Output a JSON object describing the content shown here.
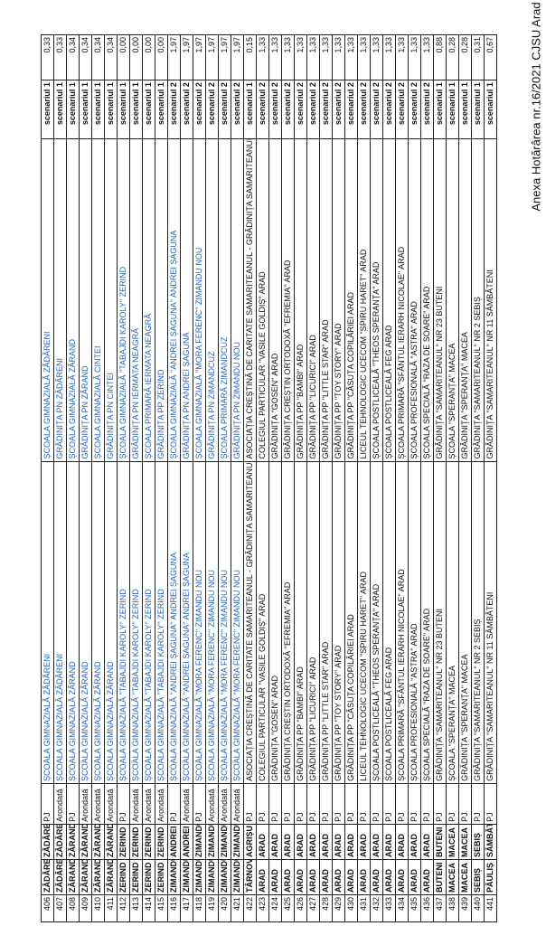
{
  "header": "Anexa Hotărârea nr.16/2021 CJSU Arad",
  "rows": [
    {
      "id": "406",
      "loc1": "ZĂDĂRENI",
      "loc2": "ZĂDĂRENI",
      "type": "PJ",
      "unit1": "ȘCOALA GIMNAZIALĂ ZĂDĂRENI",
      "unit2": "ȘCOALA GIMNAZIALĂ ZĂDĂRENI",
      "scenario": "scenariul 1",
      "value": "0,33",
      "blue": true
    },
    {
      "id": "407",
      "loc1": "ZĂDĂRENI",
      "loc2": "ZĂDĂRENI",
      "type": "Arondată",
      "unit1": "ȘCOALA GIMNAZIALĂ ZĂDĂRENI",
      "unit2": "GRĂDINIȚA PN ZĂDĂRENI",
      "scenario": "scenariul 1",
      "value": "0,33",
      "blue": true
    },
    {
      "id": "408",
      "loc1": "ZĂRAND",
      "loc2": "ZĂRAND",
      "type": "PJ",
      "unit1": "ȘCOALA GIMNAZIALĂ ZĂRAND",
      "unit2": "ȘCOALA GIMNAZIALĂ ZĂRAND",
      "scenario": "scenariul 1",
      "value": "0,34",
      "blue": true
    },
    {
      "id": "409",
      "loc1": "ZĂRAND",
      "loc2": "ZĂRAND",
      "type": "Arondată",
      "unit1": "ȘCOALA GIMNAZIALĂ ZĂRAND",
      "unit2": "GRĂDINIȚA PN ZĂRAND",
      "scenario": "scenariul 1",
      "value": "0,34",
      "blue": true
    },
    {
      "id": "410",
      "loc1": "ZĂRAND",
      "loc2": "ZĂRAND",
      "type": "Arondată",
      "unit1": "ȘCOALA GIMNAZIALĂ ZĂRAND",
      "unit2": "ȘCOALA GIMNAZIALĂ CINTEI",
      "scenario": "scenariul 1",
      "value": "0,34",
      "blue": true
    },
    {
      "id": "411",
      "loc1": "ZĂRAND",
      "loc2": "ZĂRAND",
      "type": "Arondată",
      "unit1": "ȘCOALA GIMNAZIALĂ ZĂRAND",
      "unit2": "GRĂDINIȚA PN CINTEI",
      "scenario": "scenariul 1",
      "value": "0,34",
      "blue": true
    },
    {
      "id": "412",
      "loc1": "ZERIND",
      "loc2": "ZERIND",
      "type": "PJ",
      "unit1": "ȘCOALA GIMNAZIALĂ \"TABAJDI KAROLY\" ZERIND",
      "unit2": "ȘCOALA GIMNAZIALĂ \"TABAJDI KAROLY\" ZERIND",
      "scenario": "scenariul 1",
      "value": "0,00",
      "blue": true
    },
    {
      "id": "413",
      "loc1": "ZERIND",
      "loc2": "ZERIND",
      "type": "Arondată",
      "unit1": "ȘCOALA GIMNAZIALĂ \"TABAJDI KAROLY\" ZERIND",
      "unit2": "GRĂDINIȚA PN IERMATA NEAGRĂ",
      "scenario": "scenariul 1",
      "value": "0,00",
      "blue": true
    },
    {
      "id": "414",
      "loc1": "ZERIND",
      "loc2": "ZERIND",
      "type": "Arondată",
      "unit1": "ȘCOALA GIMNAZIALĂ \"TABAJDI KAROLY\" ZERIND",
      "unit2": "ȘCOALA PRIMARĂ IERMATA NEAGRĂ",
      "scenario": "scenariul 1",
      "value": "0,00",
      "blue": true
    },
    {
      "id": "415",
      "loc1": "ZERIND",
      "loc2": "ZERIND",
      "type": "Arondată",
      "unit1": "ȘCOALA GIMNAZIALĂ \"TABAJDI KAROLY\" ZERIND",
      "unit2": "GRĂDINIȚA PP ZERIND",
      "scenario": "scenariul 1",
      "value": "0,00",
      "blue": true
    },
    {
      "id": "416",
      "loc1": "ZIMANDU NOU",
      "loc2": "ANDREI ȘAGUNA",
      "type": "PJ",
      "unit1": "ȘCOALA GIMNAZIALĂ \"ANDREI ȘAGUNA\" ANDREI ȘAGUNA",
      "unit2": "ȘCOALA GIMNAZIALĂ \"ANDREI ȘAGUNA\" ANDREI ȘAGUNA",
      "scenario": "scenariul 2",
      "value": "1,97",
      "blue": true
    },
    {
      "id": "417",
      "loc1": "ZIMANDU NOU",
      "loc2": "ANDREI ȘAGUNA",
      "type": "Arondată",
      "unit1": "ȘCOALA GIMNAZIALĂ \"ANDREI ȘAGUNA\" ANDREI ȘAGUNA",
      "unit2": "GRĂDINIȚA PN ANDREI ȘAGUNA",
      "scenario": "scenariul 2",
      "value": "1,97",
      "blue": true
    },
    {
      "id": "418",
      "loc1": "ZIMANDU NOU",
      "loc2": "ZIMANDU NOU",
      "type": "PJ",
      "unit1": "ȘCOALA GIMNAZIALĂ \"MORA FERENC\" ZIMANDU NOU",
      "unit2": "ȘCOALA GIMNAZIALĂ \"MORA FERENC\" ZIMANDU NOU",
      "scenario": "scenariul 2",
      "value": "1,97",
      "blue": true
    },
    {
      "id": "419",
      "loc1": "ZIMANDU NOU",
      "loc2": "ZIMANDU NOU",
      "type": "Arondată",
      "unit1": "ȘCOALA GIMNAZIALĂ \"MORA FERENC\" ZIMANDU NOU",
      "unit2": "GRĂDINIȚA PN ZIMANDCUZ",
      "scenario": "scenariul 2",
      "value": "1,97",
      "blue": true
    },
    {
      "id": "420",
      "loc1": "ZIMANDU NOU",
      "loc2": "ZIMANDU NOU",
      "type": "Arondată",
      "unit1": "ȘCOALA GIMNAZIALĂ \"MORA FERENC\" ZIMANDU NOU",
      "unit2": "ȘCOALA PRIMARĂ ZIMANDCUZ",
      "scenario": "scenariul 2",
      "value": "1,97",
      "blue": true
    },
    {
      "id": "421",
      "loc1": "ZIMANDU NOU",
      "loc2": "ZIMANDU NOU",
      "type": "Arondată",
      "unit1": "ȘCOALA GIMNAZIALĂ \"MORA FERENC\" ZIMANDU NOU",
      "unit2": "GRĂDINIȚA PN ZIMANDU NOU",
      "scenario": "scenariul 2",
      "value": "1,97",
      "blue": true
    },
    {
      "id": "422",
      "loc1": "TÂRNOVA",
      "loc2": "AGRIȘU MARE",
      "type": "PJ",
      "unit1": "ASOCIAȚIA CREȘTINĂ DE CARITATE SAMARITEANUL - GRĂDINIȚA SAMARITEANUL",
      "unit2": "ASOCIAȚIA CREȘTINĂ DE CARITATE SAMARITEANUL - GRĂDINIȚA SAMARITEANUL",
      "scenario": "scenariul 1",
      "value": "0,15",
      "blue": false
    },
    {
      "id": "423",
      "loc1": "ARAD",
      "loc2": "ARAD",
      "type": "PJ",
      "unit1": "COLEGIUL PARTICULAR \"VASILE GOLDIȘ\" ARAD",
      "unit2": "COLEGIUL PARTICULAR \"VASILE GOLDIȘ\" ARAD",
      "scenario": "scenariul 2",
      "value": "1,33",
      "blue": false
    },
    {
      "id": "424",
      "loc1": "ARAD",
      "loc2": "ARAD",
      "type": "PJ",
      "unit1": "GRĂDINIȚA \"GOSEN\" ARAD",
      "unit2": "GRĂDINIȚA \"GOSEN\" ARAD",
      "scenario": "scenariul 2",
      "value": "1,33",
      "blue": false
    },
    {
      "id": "425",
      "loc1": "ARAD",
      "loc2": "ARAD",
      "type": "PJ",
      "unit1": "GRĂDINIȚA CREȘTIN ORTODOXĂ \"EFREMIA\" ARAD",
      "unit2": "GRĂDINIȚA CREȘTIN ORTODOXĂ \"EFREMIA\" ARAD",
      "scenario": "scenariul 2",
      "value": "1,33",
      "blue": false
    },
    {
      "id": "426",
      "loc1": "ARAD",
      "loc2": "ARAD",
      "type": "PJ",
      "unit1": "GRĂDINIȚA PP \"BAMBI\" ARAD",
      "unit2": "GRĂDINIȚA PP \"BAMBI\" ARAD",
      "scenario": "scenariul 2",
      "value": "1,33",
      "blue": false
    },
    {
      "id": "427",
      "loc1": "ARAD",
      "loc2": "ARAD",
      "type": "PJ",
      "unit1": "GRĂDINIȚA PP \"LICURICI\" ARAD",
      "unit2": "GRĂDINIȚA PP \"LICURICI\" ARAD",
      "scenario": "scenariul 2",
      "value": "1,33",
      "blue": false
    },
    {
      "id": "428",
      "loc1": "ARAD",
      "loc2": "ARAD",
      "type": "PJ",
      "unit1": "GRĂDINIȚA PP \"LITTLE STAR\" ARAD",
      "unit2": "GRĂDINIȚA PP \"LITTLE STAR\" ARAD",
      "scenario": "scenariul 2",
      "value": "1,33",
      "blue": false
    },
    {
      "id": "429",
      "loc1": "ARAD",
      "loc2": "ARAD",
      "type": "PJ",
      "unit1": "GRĂDINIȚA PP \"TOY STORY\" ARAD",
      "unit2": "GRĂDINIȚA PP \"TOY STORY\" ARAD",
      "scenario": "scenariul 2",
      "value": "1,33",
      "blue": false
    },
    {
      "id": "430",
      "loc1": "ARAD",
      "loc2": "ARAD",
      "type": "PJ",
      "unit1": "GRĂDINIȚA PP \"CĂSUȚA COPILĂRIEI ARAD",
      "unit2": "GRĂDINIȚA PP \"CĂSUȚA COPILĂRIEI ARAD",
      "scenario": "scenariul 2",
      "value": "1,33",
      "blue": false
    },
    {
      "id": "431",
      "loc1": "ARAD",
      "loc2": "ARAD",
      "type": "PJ",
      "unit1": "LICEUL TEHNOLOGIC UCECOM \"SPIRU HARET\" ARAD",
      "unit2": "LICEUL TEHNOLOGIC UCECOM \"SPIRU HARET\" ARAD",
      "scenario": "scenariul 2",
      "value": "1,33",
      "blue": false
    },
    {
      "id": "432",
      "loc1": "ARAD",
      "loc2": "ARAD",
      "type": "PJ",
      "unit1": "ȘCOALA POSTLICEALĂ \"THEOS SPERANȚA\" ARAD",
      "unit2": "ȘCOALA POSTLICEALĂ \"THEOS SPERANȚA\" ARAD",
      "scenario": "scenariul 2",
      "value": "1,33",
      "blue": false
    },
    {
      "id": "433",
      "loc1": "ARAD",
      "loc2": "ARAD",
      "type": "PJ",
      "unit1": "ȘCOALA POSTLICEALĂ FEG ARAD",
      "unit2": "ȘCOALA POSTLICEALĂ FEG ARAD",
      "scenario": "scenariul 2",
      "value": "1,33",
      "blue": false
    },
    {
      "id": "434",
      "loc1": "ARAD",
      "loc2": "ARAD",
      "type": "PJ",
      "unit1": "ȘCOALA PRIMARĂ \"SFÂNTUL IERARH NICOLAE\" ARAD",
      "unit2": "ȘCOALA PRIMARĂ \"SFÂNTUL IERARH NICOLAE\" ARAD",
      "scenario": "scenariul 2",
      "value": "1,33",
      "blue": false
    },
    {
      "id": "435",
      "loc1": "ARAD",
      "loc2": "ARAD",
      "type": "PJ",
      "unit1": "ȘCOALA PROFESIONALĂ \"ASTRA\" ARAD",
      "unit2": "ȘCOALA PROFESIONALĂ \"ASTRA\" ARAD",
      "scenario": "scenariul 2",
      "value": "1,33",
      "blue": false
    },
    {
      "id": "436",
      "loc1": "ARAD",
      "loc2": "ARAD",
      "type": "PJ",
      "unit1": "ȘCOALA SPECIALĂ \"RAZA DE SOARE\" ARAD",
      "unit2": "ȘCOALA SPECIALĂ \"RAZA DE SOARE\" ARAD",
      "scenario": "scenariul 2",
      "value": "1,33",
      "blue": false
    },
    {
      "id": "437",
      "loc1": "BUTENI",
      "loc2": "BUTENI",
      "type": "PJ",
      "unit1": "GRĂDINIȚA \"SAMARITEANUL\" NR 23 BUTENI",
      "unit2": "GRĂDINIȚA \"SAMARITEANUL\" NR 23 BUTENI",
      "scenario": "scenariul 1",
      "value": "0,88",
      "blue": false
    },
    {
      "id": "438",
      "loc1": "MACEA",
      "loc2": "MACEA",
      "type": "PJ",
      "unit1": "ȘCOALA \"SPERANȚA\" MACEA",
      "unit2": "ȘCOALA \"SPERANȚA\" MACEA",
      "scenario": "scenariul 1",
      "value": "0,28",
      "blue": false
    },
    {
      "id": "439",
      "loc1": "MACEA",
      "loc2": "MACEA",
      "type": "PJ",
      "unit1": "GRĂDINIȚA \"SPERANȚA\" MACEA",
      "unit2": "GRĂDINIȚA \"SPERANȚA\" MACEA",
      "scenario": "scenariul 1",
      "value": "0,28",
      "blue": false
    },
    {
      "id": "440",
      "loc1": "SEBIȘ",
      "loc2": "SEBIȘ",
      "type": "PJ",
      "unit1": "GRĂDINIȚA \"SAMARITEANUL\" NR 2 SEBIȘ",
      "unit2": "GRĂDINIȚA \"SAMARITEANUL\" NR 2 SEBIȘ",
      "scenario": "scenariul 1",
      "value": "0,31",
      "blue": false
    },
    {
      "id": "441",
      "loc1": "PĂULIȘ",
      "loc2": "SÂMBĂTENI",
      "type": "PJ",
      "unit1": "GRĂDINIȚA \"SAMARITEANUL\" NR 11 SÂMBĂTENI",
      "unit2": "GRĂDINIȚA \"SAMARITEANUL\" NR 11 SÂMBĂTENI",
      "scenario": "scenariul 1",
      "value": "0,67",
      "blue": false
    }
  ]
}
